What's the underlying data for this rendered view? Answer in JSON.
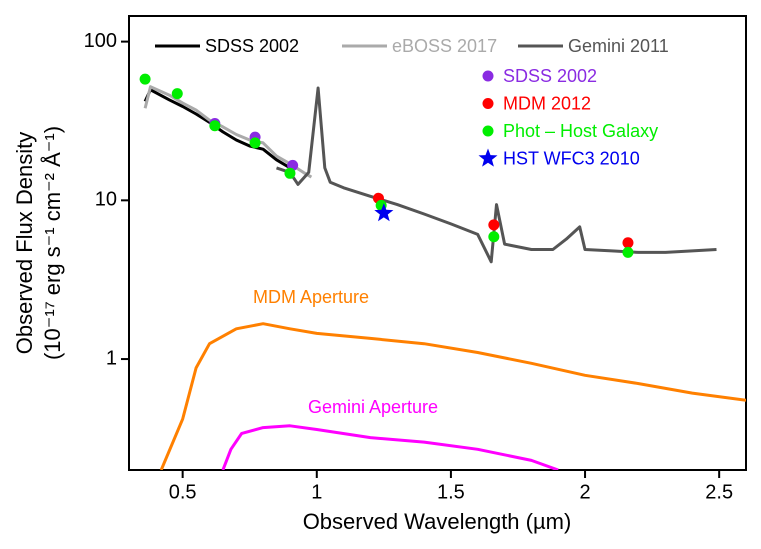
{
  "chart_data": {
    "type": "line",
    "xlabel": "Observed Wavelength (µm)",
    "ylabel": [
      "Observed Flux Density",
      "(10⁻¹⁷ erg s⁻¹ cm⁻² Å⁻¹)"
    ],
    "xlim": [
      0.3,
      2.6
    ],
    "ylim": [
      0.2,
      145
    ],
    "xticks": [
      0.5,
      1,
      1.5,
      2,
      2.5
    ],
    "yticks": [
      1,
      10,
      100
    ],
    "log_y": true,
    "series": [
      {
        "name": "SDSS 2002",
        "type": "line",
        "color": "#000000",
        "legend": true,
        "x": [
          0.36,
          0.38,
          0.45,
          0.5,
          0.55,
          0.6,
          0.65,
          0.7,
          0.75,
          0.8,
          0.85,
          0.9
        ],
        "values": [
          42,
          49.7,
          43,
          39,
          35,
          31,
          27,
          24,
          22,
          21,
          18,
          16
        ]
      },
      {
        "name": "eBOSS 2017",
        "type": "line",
        "color": "#aaaaaa",
        "legend": true,
        "x": [
          0.36,
          0.38,
          0.45,
          0.5,
          0.55,
          0.6,
          0.65,
          0.7,
          0.75,
          0.8,
          0.85,
          0.9,
          0.95,
          0.98
        ],
        "values": [
          38,
          52,
          46,
          41,
          37,
          32,
          29,
          26,
          24,
          23,
          19,
          17,
          15,
          14
        ]
      },
      {
        "name": "Gemini 2011",
        "type": "line",
        "color": "#555555",
        "legend": true,
        "x": [
          0.85,
          0.9,
          0.93,
          0.97,
          1.005,
          1.03,
          1.05,
          1.1,
          1.2,
          1.3,
          1.4,
          1.5,
          1.6,
          1.65,
          1.67,
          1.7,
          1.8,
          1.88,
          1.93,
          1.98,
          2.0,
          2.1,
          2.2,
          2.3,
          2.4,
          2.49
        ],
        "values": [
          16,
          15,
          12.6,
          15,
          51,
          16,
          13,
          12,
          10.6,
          9.4,
          8.2,
          7.1,
          6.1,
          4.1,
          9.4,
          5.3,
          4.9,
          4.9,
          5.7,
          6.8,
          4.9,
          4.8,
          4.7,
          4.7,
          4.8,
          4.9
        ]
      },
      {
        "name": "MDM Aperture",
        "type": "line",
        "color": "#ff8000",
        "legend": false,
        "x": [
          0.42,
          0.5,
          0.55,
          0.6,
          0.7,
          0.8,
          0.9,
          1.0,
          1.2,
          1.4,
          1.6,
          1.8,
          2.0,
          2.2,
          2.4,
          2.6
        ],
        "values": [
          0.2,
          0.42,
          0.88,
          1.25,
          1.55,
          1.67,
          1.55,
          1.45,
          1.35,
          1.25,
          1.1,
          0.94,
          0.79,
          0.7,
          0.61,
          0.55
        ]
      },
      {
        "name": "Gemini Aperture",
        "type": "line",
        "color": "#ff00ff",
        "legend": false,
        "x": [
          0.65,
          0.68,
          0.72,
          0.8,
          0.9,
          1.0,
          1.2,
          1.4,
          1.6,
          1.8,
          1.9
        ],
        "values": [
          0.2,
          0.27,
          0.34,
          0.37,
          0.38,
          0.36,
          0.32,
          0.3,
          0.27,
          0.23,
          0.2
        ]
      },
      {
        "name": "SDSS 2002",
        "type": "scatter",
        "marker": "circle",
        "color": "#8a2be2",
        "legend": true,
        "x": [
          0.62,
          0.77,
          0.91
        ],
        "values": [
          30.5,
          25,
          16.6
        ]
      },
      {
        "name": "MDM 2012",
        "type": "scatter",
        "marker": "circle",
        "color": "#ff0000",
        "legend": true,
        "x": [
          1.23,
          1.66,
          2.16
        ],
        "values": [
          10.3,
          7,
          5.4
        ]
      },
      {
        "name": "Phot – Host Galaxy",
        "type": "scatter",
        "marker": "circle",
        "color": "#00ee00",
        "legend": true,
        "x": [
          0.36,
          0.48,
          0.62,
          0.77,
          0.9,
          1.24,
          1.66,
          2.16
        ],
        "values": [
          58,
          47,
          29.5,
          23,
          14.8,
          9.3,
          5.9,
          4.7
        ]
      },
      {
        "name": "HST WFC3 2010",
        "type": "scatter",
        "marker": "star",
        "color": "#0000ee",
        "legend": true,
        "x": [
          1.25
        ],
        "values": [
          8.3
        ]
      }
    ]
  }
}
